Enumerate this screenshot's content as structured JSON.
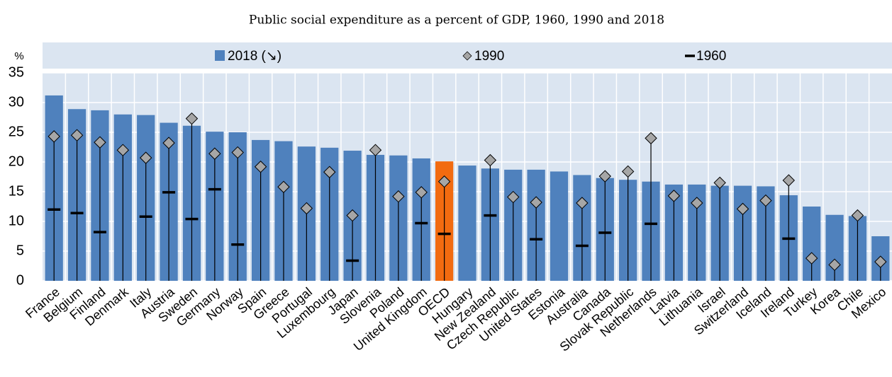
{
  "chart_data": {
    "type": "bar",
    "title": "Public social expenditure as a percent of GDP, 1960, 1990 and 2018",
    "y_label": "%",
    "categories": [
      "France",
      "Belgium",
      "Finland",
      "Denmark",
      "Italy",
      "Austria",
      "Sweden",
      "Germany",
      "Norway",
      "Spain",
      "Greece",
      "Portugal",
      "Luxembourg",
      "Japan",
      "Slovenia",
      "Poland",
      "United Kingdom",
      "OECD",
      "Hungary",
      "New Zealand",
      "Czech Republic",
      "United States",
      "Estonia",
      "Australia",
      "Canada",
      "Slovak Republic",
      "Netherlands",
      "Latvia",
      "Lithuania",
      "Israel",
      "Switzerland",
      "Iceland",
      "Ireland",
      "Turkey",
      "Korea",
      "Chile",
      "Mexico"
    ],
    "series": [
      {
        "name": "2018 (↘)",
        "color": "#4f81bd",
        "highlight": "OECD",
        "highlight_color": "#f26b10",
        "values": [
          31.2,
          28.9,
          28.7,
          28.0,
          27.9,
          26.6,
          26.1,
          25.1,
          25.0,
          23.7,
          23.5,
          22.6,
          22.4,
          21.9,
          21.2,
          21.1,
          20.6,
          20.1,
          19.4,
          18.9,
          18.7,
          18.7,
          18.4,
          17.8,
          17.3,
          17.0,
          16.7,
          16.2,
          16.2,
          16.0,
          16.0,
          15.9,
          14.4,
          12.5,
          11.1,
          10.9,
          7.5
        ]
      },
      {
        "name": "1990",
        "color": "#a6a6a6",
        "values": [
          24.3,
          24.5,
          23.3,
          22.0,
          20.7,
          23.2,
          27.3,
          21.4,
          21.6,
          19.2,
          15.8,
          12.2,
          18.3,
          11.0,
          22.0,
          14.2,
          14.9,
          16.7,
          null,
          20.3,
          14.1,
          13.2,
          null,
          13.1,
          17.6,
          18.4,
          24.0,
          14.3,
          13.1,
          16.5,
          12.1,
          13.5,
          16.9,
          3.8,
          2.7,
          11.0,
          3.2
        ]
      },
      {
        "name": "1960",
        "color": "#000000",
        "values": [
          12.0,
          11.4,
          8.2,
          null,
          10.8,
          14.9,
          10.4,
          15.4,
          6.1,
          null,
          null,
          null,
          null,
          3.4,
          null,
          null,
          9.7,
          7.9,
          null,
          11.0,
          null,
          7.0,
          null,
          5.9,
          8.1,
          null,
          9.6,
          null,
          null,
          null,
          null,
          null,
          7.1,
          null,
          null,
          null,
          null
        ]
      }
    ],
    "ylim": [
      0,
      35
    ],
    "yticks": [
      0,
      5,
      10,
      15,
      20,
      25,
      30,
      35
    ],
    "grid": true
  }
}
